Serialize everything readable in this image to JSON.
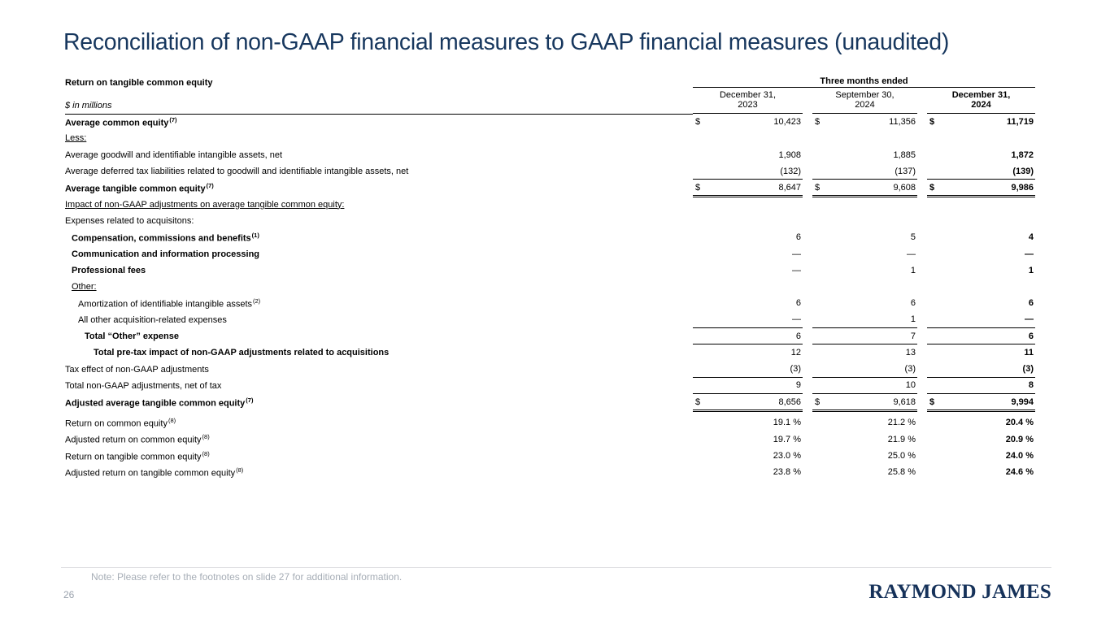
{
  "title": "Reconciliation of non-GAAP financial measures to GAAP financial measures (unaudited)",
  "colors": {
    "title": "#17375e",
    "logo": "#16325a",
    "note": "#a6adb6",
    "pagenum": "#9aa2ad",
    "divider": "#e0e0e3",
    "rule": "#000000"
  },
  "table": {
    "title": "Return on tangible common equity",
    "subtitle": "$ in millions",
    "group_header": "Three months ended",
    "columns": [
      {
        "line1": "December 31,",
        "line2": "2023",
        "bold": false
      },
      {
        "line1": "September 30,",
        "line2": "2024",
        "bold": false
      },
      {
        "line1": "December 31,",
        "line2": "2024",
        "bold": true
      }
    ],
    "rows": [
      {
        "label": "Average common equity",
        "sup": "(7)",
        "bold": true,
        "dollar": true,
        "values": [
          "10,423",
          "11,356",
          "11,719"
        ]
      },
      {
        "label": "Less:",
        "underline": true
      },
      {
        "label": "Average goodwill and identifiable intangible assets, net",
        "values": [
          "1,908",
          "1,885",
          "1,872"
        ]
      },
      {
        "label": "Average deferred tax liabilities related to goodwill and identifiable intangible assets, net",
        "values": [
          "(132)",
          "(137)",
          "(139)"
        ],
        "border": "single"
      },
      {
        "label": "Average tangible common equity",
        "sup": "(7)",
        "bold": true,
        "dollar": true,
        "values": [
          "8,647",
          "9,608",
          "9,986"
        ],
        "border": "double"
      },
      {
        "label": "Impact of non-GAAP adjustments on average tangible common equity:",
        "underline": true
      },
      {
        "label": "Expenses related to acquisitons:"
      },
      {
        "label": "Compensation, commissions and benefits",
        "sup": "(1)",
        "bold": true,
        "indent": 1,
        "values": [
          "6",
          "5",
          "4"
        ]
      },
      {
        "label": "Communication and information processing",
        "bold": true,
        "indent": 1,
        "values": [
          "—",
          "—",
          "—"
        ]
      },
      {
        "label": "Professional fees",
        "bold": true,
        "indent": 1,
        "values": [
          "—",
          "1",
          "1"
        ]
      },
      {
        "label": "Other:",
        "underline": true,
        "indent": 1
      },
      {
        "label": "Amortization of identifiable intangible assets",
        "sup": "(2)",
        "indent": 2,
        "values": [
          "6",
          "6",
          "6"
        ]
      },
      {
        "label": "All other acquisition-related expenses",
        "indent": 2,
        "values": [
          "—",
          "1",
          "—"
        ],
        "border": "single"
      },
      {
        "label": "Total “Other” expense",
        "bold": true,
        "indent": 3,
        "values": [
          "6",
          "7",
          "6"
        ],
        "border": "single"
      },
      {
        "label": "Total pre-tax impact of non-GAAP adjustments related to acquisitions",
        "bold": true,
        "indent": 4,
        "values": [
          "12",
          "13",
          "11"
        ]
      },
      {
        "label": "Tax effect of non-GAAP adjustments",
        "values": [
          "(3)",
          "(3)",
          "(3)"
        ],
        "border": "single"
      },
      {
        "label": "Total non-GAAP adjustments, net of tax",
        "values": [
          "9",
          "10",
          "8"
        ],
        "border": "single"
      },
      {
        "label": "Adjusted average tangible common equity",
        "sup": "(7)",
        "bold": true,
        "dollar": true,
        "values": [
          "8,656",
          "9,618",
          "9,994"
        ],
        "border": "double"
      },
      {
        "label": "Return on common equity",
        "sup": "(8)",
        "gap": true,
        "values": [
          "19.1 %",
          "21.2 %",
          "20.4 %"
        ]
      },
      {
        "label": "Adjusted return on common equity",
        "sup": "(8)",
        "values": [
          "19.7 %",
          "21.9 %",
          "20.9 %"
        ]
      },
      {
        "label": "Return on tangible common equity",
        "sup": "(8)",
        "values": [
          "23.0 %",
          "25.0 %",
          "24.0 %"
        ]
      },
      {
        "label": "Adjusted return on tangible common equity",
        "sup": "(8)",
        "values": [
          "23.8 %",
          "25.8 %",
          "24.6 %"
        ]
      }
    ]
  },
  "footer": {
    "note": "Note: Please refer to the footnotes on slide 27 for additional information.",
    "page_number": "26",
    "logo": "RAYMOND JAMES"
  }
}
